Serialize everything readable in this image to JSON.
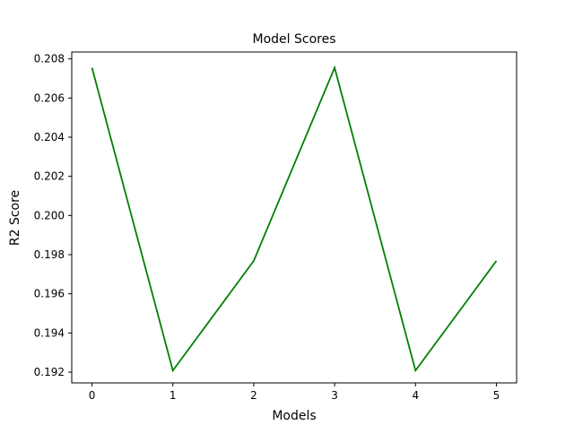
{
  "chart_data": {
    "type": "line",
    "title": "Model Scores",
    "xlabel": "Models",
    "ylabel": "R2 Score",
    "x": [
      0,
      1,
      2,
      3,
      4,
      5
    ],
    "series": [
      {
        "values": [
          0.20755,
          0.19208,
          0.19768,
          0.20755,
          0.19208,
          0.19768
        ],
        "color": "#008000"
      }
    ],
    "x_ticks": [
      0,
      1,
      2,
      3,
      4,
      5
    ],
    "x_tick_labels": [
      "0",
      "1",
      "2",
      "3",
      "4",
      "5"
    ],
    "y_ticks": [
      0.192,
      0.194,
      0.196,
      0.198,
      0.2,
      0.202,
      0.204,
      0.206,
      0.208
    ],
    "y_tick_labels": [
      "0.192",
      "0.194",
      "0.196",
      "0.198",
      "0.200",
      "0.202",
      "0.204",
      "0.206",
      "0.208"
    ],
    "xlim": [
      -0.25,
      5.25
    ],
    "ylim": [
      0.19145,
      0.20835
    ],
    "grid": false,
    "legend": "none"
  }
}
